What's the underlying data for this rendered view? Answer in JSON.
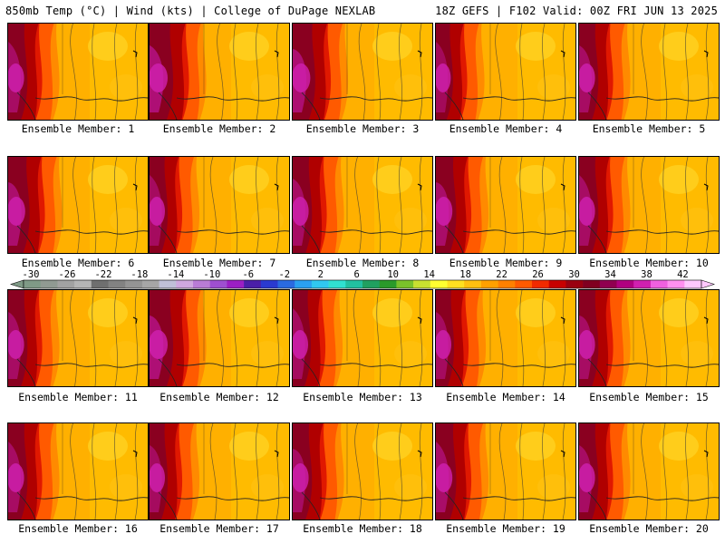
{
  "header": {
    "left_title": "850mb Temp (°C) | Wind (kts) | College of DuPage NEXLAB",
    "right_title": "18Z GEFS | F102 Valid: 00Z FRI JUN 13 2025"
  },
  "panels": [
    {
      "label": "Ensemble Member: 1",
      "warmth": 0.55
    },
    {
      "label": "Ensemble Member: 2",
      "warmth": 0.75
    },
    {
      "label": "Ensemble Member: 3",
      "warmth": 0.7
    },
    {
      "label": "Ensemble Member: 4",
      "warmth": 0.45
    },
    {
      "label": "Ensemble Member: 5",
      "warmth": 0.55
    },
    {
      "label": "Ensemble Member: 6",
      "warmth": 0.65
    },
    {
      "label": "Ensemble Member: 7",
      "warmth": 0.5
    },
    {
      "label": "Ensemble Member: 8",
      "warmth": 0.55
    },
    {
      "label": "Ensemble Member: 9",
      "warmth": 0.6
    },
    {
      "label": "Ensemble Member: 10",
      "warmth": 0.55
    },
    {
      "label": "Ensemble Member: 11",
      "warmth": 0.55
    },
    {
      "label": "Ensemble Member: 12",
      "warmth": 0.75
    },
    {
      "label": "Ensemble Member: 13",
      "warmth": 0.5
    },
    {
      "label": "Ensemble Member: 14",
      "warmth": 0.5
    },
    {
      "label": "Ensemble Member: 15",
      "warmth": 0.55
    },
    {
      "label": "Ensemble Member: 16",
      "warmth": 0.55
    },
    {
      "label": "Ensemble Member: 17",
      "warmth": 0.5
    },
    {
      "label": "Ensemble Member: 18",
      "warmth": 0.55
    },
    {
      "label": "Ensemble Member: 19",
      "warmth": 0.6
    },
    {
      "label": "Ensemble Member: 20",
      "warmth": 0.55
    }
  ],
  "colorbar": {
    "tick_labels": [
      "-30",
      "-26",
      "-22",
      "-18",
      "-14",
      "-10",
      "-6",
      "-2",
      "2",
      "6",
      "10",
      "14",
      "18",
      "22",
      "26",
      "30",
      "34",
      "38",
      "42"
    ],
    "colors": [
      "#7f9a86",
      "#909a92",
      "#a2a2a2",
      "#b5b5b5",
      "#6f6f6f",
      "#828282",
      "#949494",
      "#a6a6a6",
      "#c0c0d8",
      "#cfa8df",
      "#b97cd6",
      "#9e4fd0",
      "#9b1fc4",
      "#4a1fa8",
      "#2a3ad0",
      "#2a6ae0",
      "#2aa0f0",
      "#30c8f0",
      "#30e0d0",
      "#22c0a0",
      "#20a060",
      "#2a9a2a",
      "#7ac22a",
      "#c8e030",
      "#ffff30",
      "#ffe020",
      "#ffc010",
      "#ffa000",
      "#ff8000",
      "#ff5a00",
      "#f02a00",
      "#c80000",
      "#9a0010",
      "#800020",
      "#900050",
      "#b00080",
      "#d020b0",
      "#f060e0",
      "#ff90f0",
      "#ffc8ff"
    ]
  }
}
